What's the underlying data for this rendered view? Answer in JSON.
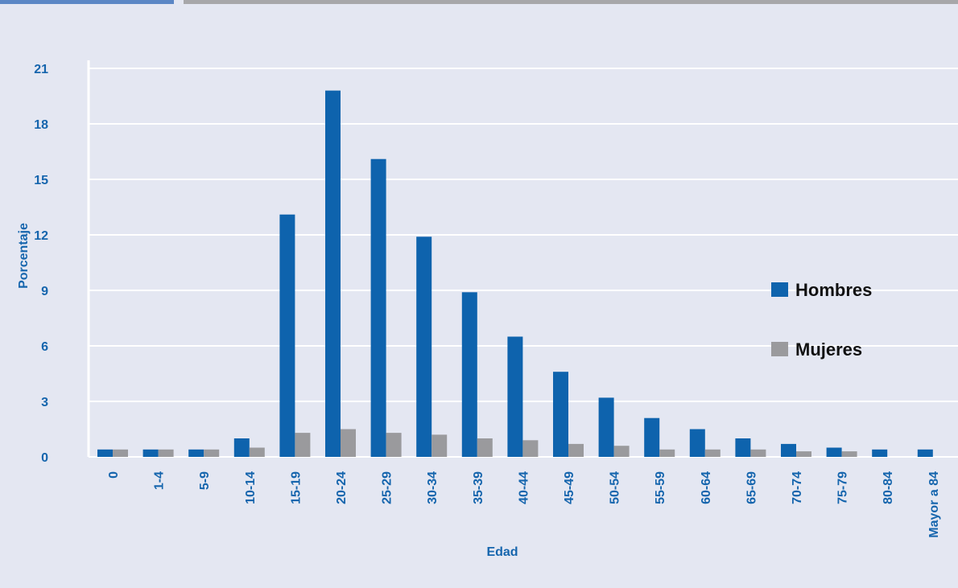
{
  "chart_data": {
    "type": "bar",
    "categories": [
      "0",
      "1-4",
      "5-9",
      "10-14",
      "15-19",
      "20-24",
      "25-29",
      "30-34",
      "35-39",
      "40-44",
      "45-49",
      "50-54",
      "55-59",
      "60-64",
      "65-69",
      "70-74",
      "75-79",
      "80-84",
      "Mayor a 84"
    ],
    "series": [
      {
        "name": "Hombres",
        "color": "#0e63ad",
        "values": [
          0.4,
          0.4,
          0.4,
          1.0,
          13.1,
          19.8,
          16.1,
          11.9,
          8.9,
          6.5,
          4.6,
          3.2,
          2.1,
          1.5,
          1.0,
          0.7,
          0.5,
          0.4,
          0.4
        ]
      },
      {
        "name": "Mujeres",
        "color": "#9a9a9d",
        "values": [
          0.4,
          0.4,
          0.4,
          0.5,
          1.3,
          1.5,
          1.3,
          1.2,
          1.0,
          0.9,
          0.7,
          0.6,
          0.4,
          0.4,
          0.4,
          0.3,
          0.3,
          0.0,
          0.0
        ]
      }
    ],
    "xlabel": "Edad",
    "ylabel": "Porcentaje",
    "yticks": [
      0,
      3,
      6,
      9,
      12,
      15,
      18,
      21
    ],
    "ylim": [
      0,
      21
    ],
    "grid": true,
    "legend_position": "right"
  }
}
